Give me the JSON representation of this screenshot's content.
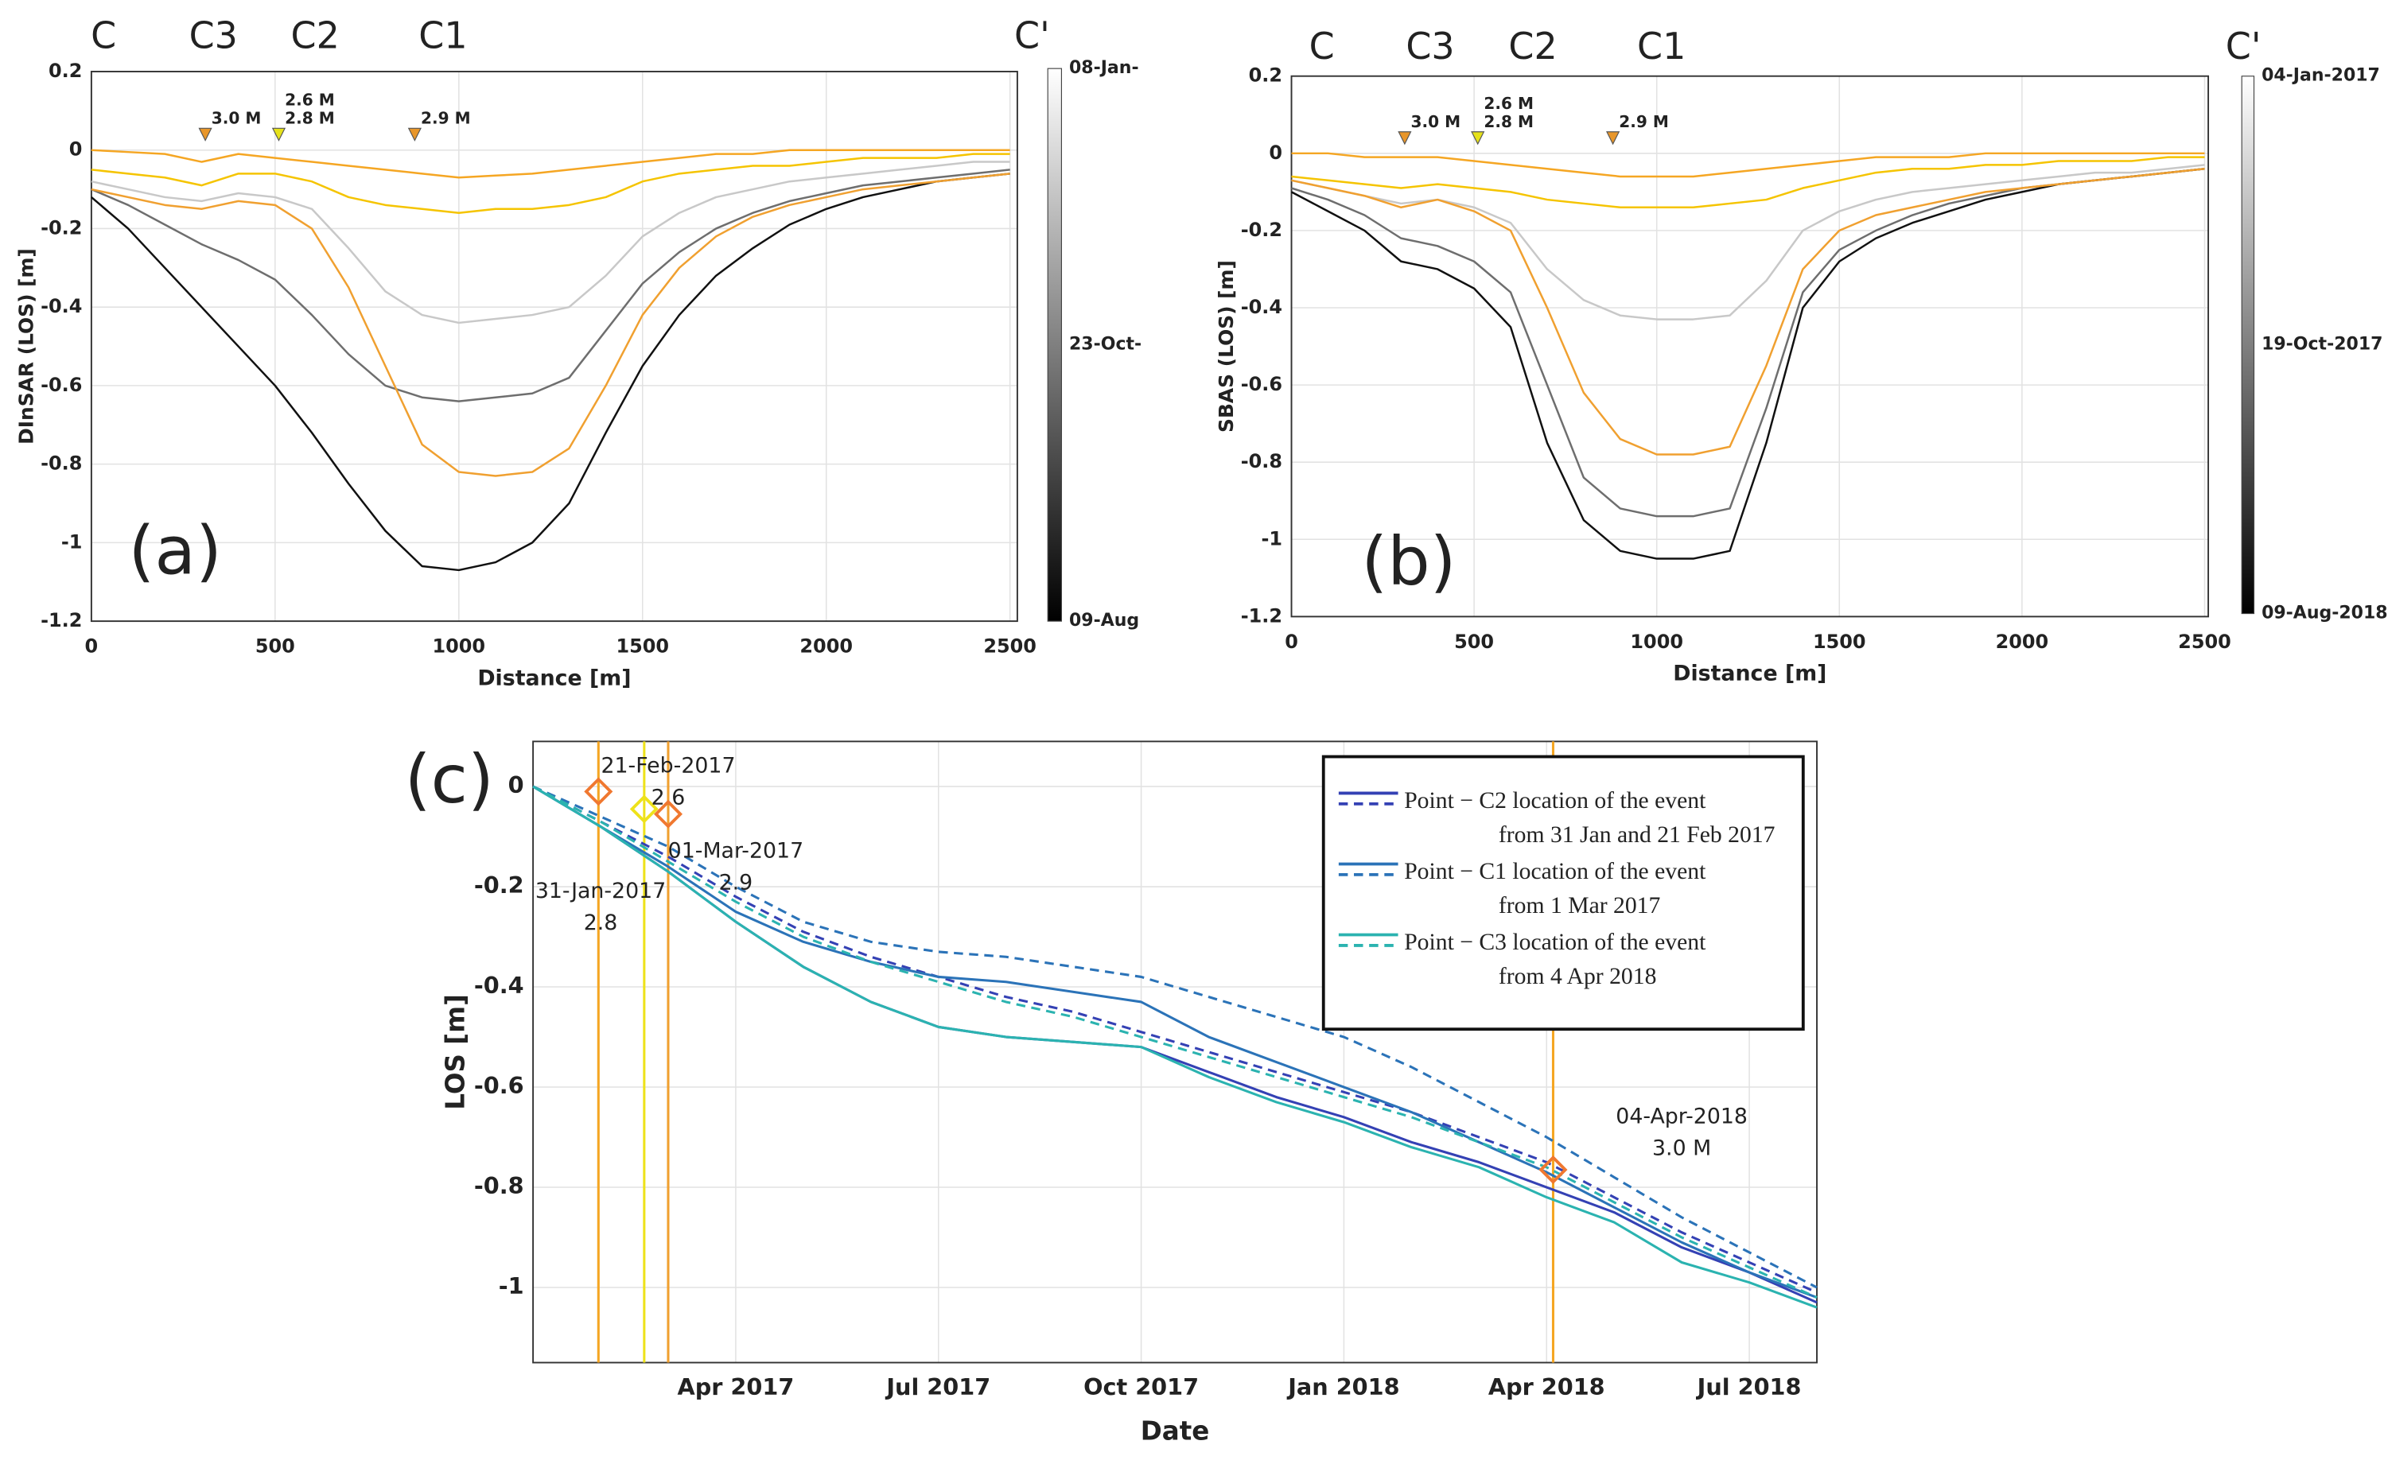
{
  "chart_data": [
    {
      "type": "line",
      "panel_label": "(a)",
      "x_label": "Distance [m]",
      "y_label": "DInSAR (LOS) [m]",
      "xlim": [
        0,
        2520
      ],
      "xticks": [
        0,
        500,
        1000,
        1500,
        2000,
        2500
      ],
      "ylim": [
        -1.2,
        0.2
      ],
      "yticks": [
        -1.2,
        -1,
        -0.8,
        -0.6,
        -0.4,
        -0.2,
        0,
        0.2
      ],
      "grid": true,
      "x": [
        0,
        100,
        200,
        300,
        400,
        500,
        600,
        700,
        800,
        900,
        1000,
        1100,
        1200,
        1300,
        1400,
        1500,
        1600,
        1700,
        1800,
        1900,
        2000,
        2100,
        2200,
        2300,
        2400,
        2500
      ],
      "series": [
        {
          "color": "#c8c8c8",
          "values": [
            -0.08,
            -0.1,
            -0.12,
            -0.13,
            -0.11,
            -0.12,
            -0.15,
            -0.25,
            -0.36,
            -0.42,
            -0.44,
            -0.43,
            -0.42,
            -0.4,
            -0.32,
            -0.22,
            -0.16,
            -0.12,
            -0.1,
            -0.08,
            -0.07,
            -0.06,
            -0.05,
            -0.04,
            -0.03,
            -0.03
          ]
        },
        {
          "color": "#6e6e6e",
          "values": [
            -0.1,
            -0.14,
            -0.19,
            -0.24,
            -0.28,
            -0.33,
            -0.42,
            -0.52,
            -0.6,
            -0.63,
            -0.64,
            -0.63,
            -0.62,
            -0.58,
            -0.46,
            -0.34,
            -0.26,
            -0.2,
            -0.16,
            -0.13,
            -0.11,
            -0.09,
            -0.08,
            -0.07,
            -0.06,
            -0.05
          ]
        },
        {
          "color": "#111111",
          "values": [
            -0.12,
            -0.2,
            -0.3,
            -0.4,
            -0.5,
            -0.6,
            -0.72,
            -0.85,
            -0.97,
            -1.06,
            -1.07,
            -1.05,
            -1.0,
            -0.9,
            -0.72,
            -0.55,
            -0.42,
            -0.32,
            -0.25,
            -0.19,
            -0.15,
            -0.12,
            -0.1,
            -0.08,
            -0.07,
            -0.06
          ]
        },
        {
          "color": "#f0a030",
          "values": [
            -0.1,
            -0.12,
            -0.14,
            -0.15,
            -0.13,
            -0.14,
            -0.2,
            -0.35,
            -0.55,
            -0.75,
            -0.82,
            -0.83,
            -0.82,
            -0.76,
            -0.6,
            -0.42,
            -0.3,
            -0.22,
            -0.17,
            -0.14,
            -0.12,
            -0.1,
            -0.09,
            -0.08,
            -0.07,
            -0.06
          ]
        },
        {
          "color": "#f5c400",
          "values": [
            -0.05,
            -0.06,
            -0.07,
            -0.09,
            -0.06,
            -0.06,
            -0.08,
            -0.12,
            -0.14,
            -0.15,
            -0.16,
            -0.15,
            -0.15,
            -0.14,
            -0.12,
            -0.08,
            -0.06,
            -0.05,
            -0.04,
            -0.04,
            -0.03,
            -0.02,
            -0.02,
            -0.02,
            -0.01,
            -0.01
          ]
        },
        {
          "color": "#f5a623",
          "values": [
            0,
            -0.005,
            -0.01,
            -0.03,
            -0.01,
            -0.02,
            -0.03,
            -0.04,
            -0.05,
            -0.06,
            -0.07,
            -0.065,
            -0.06,
            -0.05,
            -0.04,
            -0.03,
            -0.02,
            -0.01,
            -0.01,
            0,
            0,
            0,
            0,
            0,
            0,
            0
          ]
        }
      ],
      "section_labels": [
        {
          "label": "C",
          "x": 33
        },
        {
          "label": "C3",
          "x": 332
        },
        {
          "label": "C2",
          "x": 609
        },
        {
          "label": "C1",
          "x": 957
        },
        {
          "label": "C'",
          "x": 2560
        }
      ],
      "markers": [
        {
          "x": 310,
          "y": 0.04,
          "color": "#e8962a",
          "labels": [
            "3.0 M"
          ]
        },
        {
          "x": 510,
          "y": 0.04,
          "color": "#e6e21a",
          "labels": [
            "2.6 M",
            "2.8 M"
          ]
        },
        {
          "x": 880,
          "y": 0.04,
          "color": "#e8962a",
          "labels": [
            "2.9 M"
          ]
        }
      ],
      "colorbar": {
        "colors": [
          "#ffffff",
          "#000000"
        ],
        "ticks": [
          "08-Jan-",
          "23-Oct-",
          "09-Aug"
        ]
      }
    },
    {
      "type": "line",
      "panel_label": "(b)",
      "x_label": "Distance [m]",
      "y_label": "SBAS (LOS) [m]",
      "xlim": [
        0,
        2510
      ],
      "xticks": [
        0,
        500,
        1000,
        1500,
        2000,
        2500
      ],
      "ylim": [
        -1.2,
        0.2
      ],
      "yticks": [
        -1.2,
        -1,
        -0.8,
        -0.6,
        -0.4,
        -0.2,
        0,
        0.2
      ],
      "grid": true,
      "x": [
        0,
        100,
        200,
        300,
        400,
        500,
        600,
        700,
        800,
        900,
        1000,
        1100,
        1200,
        1300,
        1400,
        1500,
        1600,
        1700,
        1800,
        1900,
        2000,
        2100,
        2200,
        2300,
        2400,
        2500
      ],
      "series": [
        {
          "color": "#c8c8c8",
          "values": [
            -0.07,
            -0.09,
            -0.11,
            -0.13,
            -0.12,
            -0.14,
            -0.18,
            -0.3,
            -0.38,
            -0.42,
            -0.43,
            -0.43,
            -0.42,
            -0.33,
            -0.2,
            -0.15,
            -0.12,
            -0.1,
            -0.09,
            -0.08,
            -0.07,
            -0.06,
            -0.05,
            -0.05,
            -0.04,
            -0.03
          ]
        },
        {
          "color": "#6e6e6e",
          "values": [
            -0.09,
            -0.12,
            -0.16,
            -0.22,
            -0.24,
            -0.28,
            -0.36,
            -0.6,
            -0.84,
            -0.92,
            -0.94,
            -0.94,
            -0.92,
            -0.66,
            -0.36,
            -0.25,
            -0.2,
            -0.16,
            -0.13,
            -0.11,
            -0.09,
            -0.08,
            -0.07,
            -0.06,
            -0.05,
            -0.04
          ]
        },
        {
          "color": "#111111",
          "values": [
            -0.1,
            -0.15,
            -0.2,
            -0.28,
            -0.3,
            -0.35,
            -0.45,
            -0.75,
            -0.95,
            -1.03,
            -1.05,
            -1.05,
            -1.03,
            -0.75,
            -0.4,
            -0.28,
            -0.22,
            -0.18,
            -0.15,
            -0.12,
            -0.1,
            -0.08,
            -0.07,
            -0.06,
            -0.05,
            -0.04
          ]
        },
        {
          "color": "#f0a030",
          "values": [
            -0.07,
            -0.09,
            -0.11,
            -0.14,
            -0.12,
            -0.15,
            -0.2,
            -0.4,
            -0.62,
            -0.74,
            -0.78,
            -0.78,
            -0.76,
            -0.55,
            -0.3,
            -0.2,
            -0.16,
            -0.14,
            -0.12,
            -0.1,
            -0.09,
            -0.08,
            -0.07,
            -0.06,
            -0.05,
            -0.04
          ]
        },
        {
          "color": "#f5c400",
          "values": [
            -0.06,
            -0.07,
            -0.08,
            -0.09,
            -0.08,
            -0.09,
            -0.1,
            -0.12,
            -0.13,
            -0.14,
            -0.14,
            -0.14,
            -0.13,
            -0.12,
            -0.09,
            -0.07,
            -0.05,
            -0.04,
            -0.04,
            -0.03,
            -0.03,
            -0.02,
            -0.02,
            -0.02,
            -0.01,
            -0.01
          ]
        },
        {
          "color": "#f5a623",
          "values": [
            0,
            0,
            -0.01,
            -0.01,
            -0.01,
            -0.02,
            -0.03,
            -0.04,
            -0.05,
            -0.06,
            -0.06,
            -0.06,
            -0.05,
            -0.04,
            -0.03,
            -0.02,
            -0.01,
            -0.01,
            -0.01,
            0,
            0,
            0,
            0,
            0,
            0,
            0
          ]
        }
      ],
      "section_labels": [
        {
          "label": "C",
          "x": 83
        },
        {
          "label": "C3",
          "x": 380
        },
        {
          "label": "C2",
          "x": 661
        },
        {
          "label": "C1",
          "x": 1013
        },
        {
          "label": "C'",
          "x": 2606
        }
      ],
      "markers": [
        {
          "x": 310,
          "y": 0.04,
          "color": "#e8962a",
          "labels": [
            "3.0 M"
          ]
        },
        {
          "x": 510,
          "y": 0.04,
          "color": "#e6e21a",
          "labels": [
            "2.6 M",
            "2.8 M"
          ]
        },
        {
          "x": 880,
          "y": 0.04,
          "color": "#e8962a",
          "labels": [
            "2.9 M"
          ]
        }
      ],
      "colorbar": {
        "colors": [
          "#ffffff",
          "#000000"
        ],
        "ticks": [
          "04-Jan-2017",
          "19-Oct-2017",
          "09-Aug-2018"
        ]
      }
    },
    {
      "type": "line",
      "panel_label": "(c)",
      "x_label": "Date",
      "y_label": "LOS [m]",
      "xlim": [
        "2017-01",
        "2018-08"
      ],
      "xticks": [
        {
          "value": "2017-04",
          "label": "Apr 2017"
        },
        {
          "value": "2017-07",
          "label": "Jul 2017"
        },
        {
          "value": "2017-10",
          "label": "Oct 2017"
        },
        {
          "value": "2018-01",
          "label": "Jan 2018"
        },
        {
          "value": "2018-04",
          "label": "Apr 2018"
        },
        {
          "value": "2018-07",
          "label": "Jul 2018"
        }
      ],
      "ylim": [
        -1.15,
        0.09
      ],
      "yticks": [
        -1,
        -0.8,
        -0.6,
        -0.4,
        -0.2,
        0
      ],
      "grid": true,
      "x": [
        "2017-01",
        "2017-02",
        "2017-03",
        "2017-04",
        "2017-05",
        "2017-06",
        "2017-07",
        "2017-08",
        "2017-09",
        "2017-10",
        "2017-11",
        "2017-12",
        "2018-01",
        "2018-02",
        "2018-03",
        "2018-04",
        "2018-05",
        "2018-06",
        "2018-07",
        "2018-08"
      ],
      "series": [
        {
          "name": [
            "Point − C2 location of the event",
            "from 31 Jan and 21 Feb 2017"
          ],
          "color": "#3441b4",
          "values": [
            0,
            -0.08,
            -0.17,
            -0.27,
            -0.36,
            -0.43,
            -0.48,
            -0.5,
            -0.51,
            -0.52,
            -0.57,
            -0.62,
            -0.66,
            -0.71,
            -0.75,
            -0.8,
            -0.85,
            -0.92,
            -0.97,
            -1.03
          ],
          "dashed_values": [
            0,
            -0.07,
            -0.14,
            -0.22,
            -0.29,
            -0.34,
            -0.38,
            -0.42,
            -0.45,
            -0.49,
            -0.53,
            -0.57,
            -0.61,
            -0.65,
            -0.7,
            -0.75,
            -0.82,
            -0.89,
            -0.95,
            -1.01
          ]
        },
        {
          "name": [
            "Point − C1 location of the event",
            "from 1 Mar 2017"
          ],
          "color": "#2b73b8",
          "values": [
            0,
            -0.08,
            -0.16,
            -0.25,
            -0.31,
            -0.35,
            -0.38,
            -0.39,
            -0.41,
            -0.43,
            -0.5,
            -0.55,
            -0.6,
            -0.65,
            -0.71,
            -0.77,
            -0.84,
            -0.91,
            -0.97,
            -1.02
          ],
          "dashed_values": [
            0,
            -0.06,
            -0.12,
            -0.2,
            -0.27,
            -0.31,
            -0.33,
            -0.34,
            -0.36,
            -0.38,
            -0.42,
            -0.46,
            -0.5,
            -0.56,
            -0.63,
            -0.7,
            -0.78,
            -0.86,
            -0.93,
            -1.0
          ]
        },
        {
          "name": [
            "Point − C3 location of the event",
            "from 4 Apr 2018"
          ],
          "color": "#2bb3b0",
          "values": [
            0,
            -0.08,
            -0.17,
            -0.27,
            -0.36,
            -0.43,
            -0.48,
            -0.5,
            -0.51,
            -0.52,
            -0.58,
            -0.63,
            -0.67,
            -0.72,
            -0.76,
            -0.82,
            -0.87,
            -0.95,
            -0.99,
            -1.04
          ],
          "dashed_values": [
            0,
            -0.07,
            -0.15,
            -0.23,
            -0.3,
            -0.35,
            -0.39,
            -0.43,
            -0.46,
            -0.5,
            -0.54,
            -0.58,
            -0.62,
            -0.66,
            -0.71,
            -0.76,
            -0.83,
            -0.9,
            -0.96,
            -1.02
          ]
        }
      ],
      "events": [
        {
          "date": "31-Jan-2017",
          "magnitude": "2.8",
          "color": "#f5a623",
          "marker_color": "#f07830",
          "los": -0.01,
          "label_x": "2017-02",
          "label_y": -0.21
        },
        {
          "date": "21-Feb-2017",
          "magnitude": "2.6",
          "color": "#eee21a",
          "marker_color": "#eee21a",
          "los": -0.045,
          "label_x": "2017-03",
          "label_y": 0.04
        },
        {
          "date": "01-Mar-2017",
          "magnitude": "2.9",
          "color": "#f0a030",
          "marker_color": "#f07830",
          "los": -0.055,
          "label_x": "2017-04",
          "label_y": -0.13
        },
        {
          "date": "04-Apr-2018",
          "magnitude": "3.0 M",
          "color": "#f5a623",
          "marker_color": "#f07830",
          "los": -0.765,
          "label_x": "2018-06",
          "label_y": -0.66
        }
      ]
    }
  ]
}
